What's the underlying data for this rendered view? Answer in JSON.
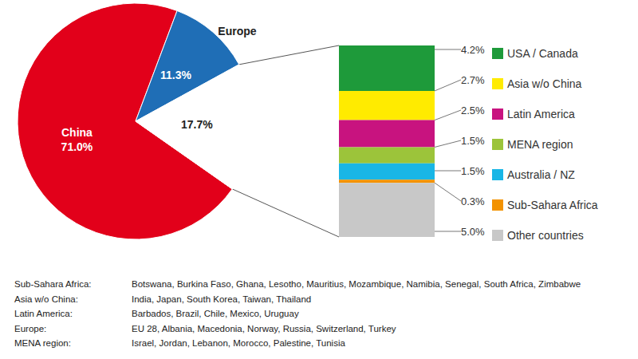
{
  "chart_data": [
    {
      "type": "pie",
      "categories": [
        "China",
        "Europe",
        null
      ],
      "values": [
        71.0,
        11.3,
        17.7
      ],
      "value_labels": [
        "71.0%",
        "11.3%",
        "17.7%"
      ],
      "colors": [
        "#e2001a",
        "#1f6eb6",
        "#ffffff"
      ],
      "data_labels": true
    },
    {
      "type": "bar",
      "stacked": true,
      "categories": [
        "USA / Canada",
        "Asia w/o China",
        "Latin America",
        "MENA region",
        "Australia / NZ",
        "Sub-Sahara Africa",
        "Other countries"
      ],
      "values": [
        4.2,
        2.7,
        2.5,
        1.5,
        1.5,
        0.3,
        5.0
      ],
      "value_labels": [
        "4.2%",
        "2.7%",
        "2.5%",
        "1.5%",
        "1.5%",
        "0.3%",
        "5.0%"
      ],
      "colors": [
        "#1e9a3a",
        "#ffeb00",
        "#c8137f",
        "#9cc43a",
        "#19b6e6",
        "#f39200",
        "#c8c8c8"
      ],
      "ylim": [
        0,
        17.7
      ],
      "tick_labels": false,
      "data_labels": true,
      "legend": "right"
    }
  ],
  "footnotes": [
    {
      "region": "Sub-Sahara Africa:",
      "countries": "Botswana, Burkina Faso, Ghana, Lesotho, Mauritius, Mozambique, Namibia, Senegal, South Africa, Zimbabwe"
    },
    {
      "region": "Asia w/o China:",
      "countries": "India, Japan, South Korea, Taiwan, Thailand"
    },
    {
      "region": "Latin America:",
      "countries": "Barbados, Brazil, Chile, Mexico, Uruguay"
    },
    {
      "region": "Europe:",
      "countries": "EU 28, Albania, Macedonia, Norway, Russia, Switzerland, Turkey"
    },
    {
      "region": "MENA region:",
      "countries": "Israel, Jordan, Lebanon, Morocco, Palestine, Tunisia"
    }
  ]
}
